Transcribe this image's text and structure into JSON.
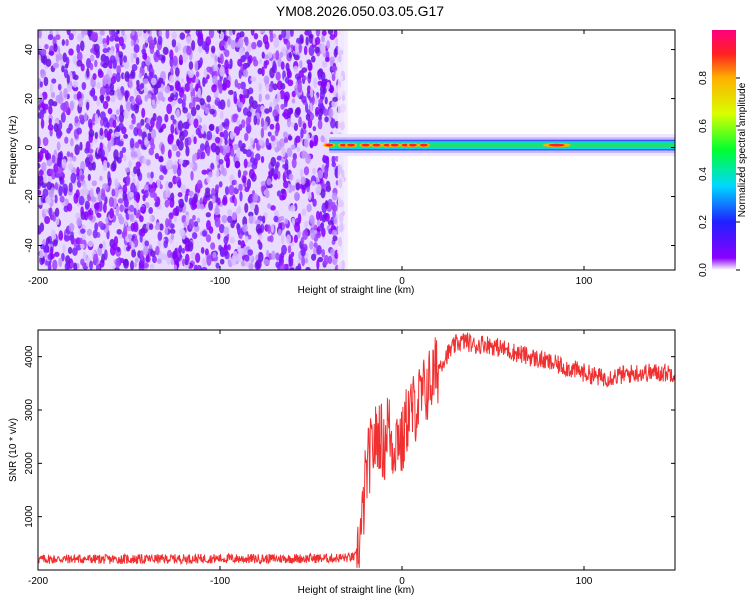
{
  "title": "YM08.2026.050.03.05.G17",
  "chart_data": [
    {
      "type": "heatmap",
      "xlabel": "Height of straight line (km)",
      "ylabel": "Frequency (Hz)",
      "xlim": [
        -200,
        150
      ],
      "ylim": [
        -50,
        48
      ],
      "xticks": [
        -200,
        -100,
        0,
        100
      ],
      "yticks": [
        -40,
        -20,
        0,
        20,
        40
      ],
      "grid": false,
      "colorbar": {
        "label": "Normalized spectral amplitude",
        "range": [
          0,
          1
        ],
        "ticks": [
          "0.0",
          "0.2",
          "0.4",
          "0.6",
          "0.8"
        ]
      },
      "noise_region_x": [
        -200,
        -32
      ],
      "signal_band": {
        "x_start": -40,
        "x_end": 150,
        "frequency_center": 1,
        "frequency_halfwidth": 3
      },
      "peak_points_x": [
        -40,
        -32,
        -28,
        -20,
        -14,
        -8,
        -4,
        2,
        6,
        12,
        85
      ]
    },
    {
      "type": "line",
      "xlabel": "Height of straight line (km)",
      "ylabel": "SNR (10 * v/v)",
      "xlim": [
        -200,
        150
      ],
      "ylim": [
        0,
        4500
      ],
      "xticks": [
        -200,
        -100,
        0,
        100
      ],
      "yticks": [
        1000,
        2000,
        3000,
        4000
      ],
      "grid": false,
      "color": "#f03030",
      "series": [
        {
          "x": [
            -200,
            -180,
            -160,
            -140,
            -120,
            -100,
            -80,
            -60,
            -40,
            -30,
            -25,
            -22,
            -20,
            -18,
            -15,
            -12,
            -10,
            -8,
            -5,
            -2,
            0,
            3,
            6,
            10,
            15,
            20,
            25,
            30,
            35,
            40,
            45,
            50,
            60,
            70,
            80,
            90,
            100,
            110,
            120,
            130,
            140,
            150
          ],
          "values": [
            200,
            210,
            200,
            205,
            210,
            215,
            210,
            215,
            220,
            230,
            250,
            800,
            1700,
            2100,
            2400,
            2600,
            2200,
            2800,
            2300,
            2600,
            2300,
            2900,
            3000,
            3200,
            3500,
            3800,
            4050,
            4250,
            4300,
            4200,
            4250,
            4200,
            4100,
            4000,
            3900,
            3800,
            3700,
            3600,
            3650,
            3700,
            3700,
            3700
          ]
        }
      ]
    }
  ]
}
